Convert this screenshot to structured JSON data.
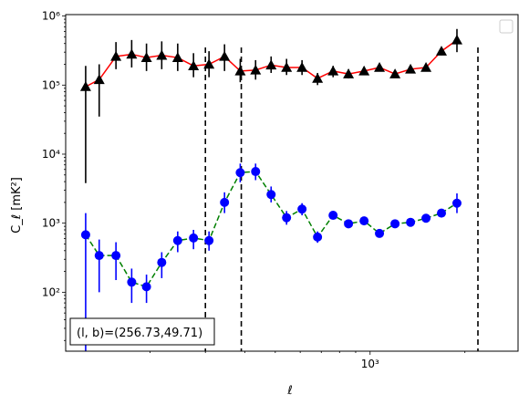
{
  "chart_data": {
    "type": "line",
    "title": "",
    "xlabel": "ℓ",
    "ylabel": "C_ℓ  [mK²]",
    "xscale": "log",
    "yscale": "log",
    "xlim": [
      108,
      2950
    ],
    "ylim": [
      14,
      1050000
    ],
    "grid": false,
    "legend": "top-right (empty)",
    "x_ticks": [
      {
        "value": 1000,
        "label": "10³"
      }
    ],
    "y_ticks": [
      {
        "value": 100,
        "label": "10²"
      },
      {
        "value": 1000,
        "label": "10³"
      },
      {
        "value": 10000,
        "label": "10⁴"
      },
      {
        "value": 100000,
        "label": "10⁵"
      },
      {
        "value": 1000000,
        "label": "10⁶"
      }
    ],
    "annotation": "(l, b)=(256.73,49.71)",
    "vlines": [
      300,
      390,
      2200
    ],
    "series": [
      {
        "color": "#ff0000",
        "marker": "triangle",
        "marker_color": "#000000",
        "line_style": "solid",
        "points": [
          {
            "x": 125,
            "y": 95000,
            "lo": 3800,
            "hi": 190000
          },
          {
            "x": 138,
            "y": 120000,
            "lo": 35000,
            "hi": 200000
          },
          {
            "x": 156,
            "y": 260000,
            "lo": 170000,
            "hi": 420000
          },
          {
            "x": 175,
            "y": 280000,
            "lo": 180000,
            "hi": 450000
          },
          {
            "x": 195,
            "y": 250000,
            "lo": 160000,
            "hi": 400000
          },
          {
            "x": 218,
            "y": 270000,
            "lo": 170000,
            "hi": 430000
          },
          {
            "x": 245,
            "y": 250000,
            "lo": 160000,
            "hi": 400000
          },
          {
            "x": 275,
            "y": 190000,
            "lo": 130000,
            "hi": 290000
          },
          {
            "x": 308,
            "y": 200000,
            "lo": 130000,
            "hi": 310000
          },
          {
            "x": 345,
            "y": 260000,
            "lo": 160000,
            "hi": 390000
          },
          {
            "x": 387,
            "y": 160000,
            "lo": 110000,
            "hi": 240000
          },
          {
            "x": 433,
            "y": 165000,
            "lo": 120000,
            "hi": 230000
          },
          {
            "x": 485,
            "y": 195000,
            "lo": 150000,
            "hi": 260000
          },
          {
            "x": 543,
            "y": 180000,
            "lo": 140000,
            "hi": 240000
          },
          {
            "x": 608,
            "y": 180000,
            "lo": 140000,
            "hi": 230000
          },
          {
            "x": 681,
            "y": 125000,
            "lo": 100000,
            "hi": 150000
          },
          {
            "x": 763,
            "y": 160000,
            "lo": 130000,
            "hi": 190000
          },
          {
            "x": 854,
            "y": 145000,
            "lo": 125000,
            "hi": 170000
          },
          {
            "x": 957,
            "y": 160000,
            "lo": 140000,
            "hi": 185000
          },
          {
            "x": 1071,
            "y": 180000,
            "lo": 160000,
            "hi": 205000
          },
          {
            "x": 1200,
            "y": 145000,
            "lo": 130000,
            "hi": 165000
          },
          {
            "x": 1344,
            "y": 170000,
            "lo": 150000,
            "hi": 190000
          },
          {
            "x": 1505,
            "y": 180000,
            "lo": 160000,
            "hi": 200000
          },
          {
            "x": 1685,
            "y": 310000,
            "lo": 270000,
            "hi": 350000
          },
          {
            "x": 1887,
            "y": 450000,
            "lo": 300000,
            "hi": 650000
          }
        ]
      },
      {
        "color": "#008000",
        "marker": "circle",
        "marker_color": "#0000ff",
        "line_style": "dashed",
        "points": [
          {
            "x": 125,
            "y": 680,
            "lo": 14,
            "hi": 1400
          },
          {
            "x": 138,
            "y": 340,
            "lo": 100,
            "hi": 580
          },
          {
            "x": 156,
            "y": 340,
            "lo": 150,
            "hi": 530
          },
          {
            "x": 175,
            "y": 140,
            "lo": 70,
            "hi": 220
          },
          {
            "x": 195,
            "y": 120,
            "lo": 70,
            "hi": 180
          },
          {
            "x": 218,
            "y": 270,
            "lo": 160,
            "hi": 380
          },
          {
            "x": 245,
            "y": 560,
            "lo": 380,
            "hi": 760
          },
          {
            "x": 275,
            "y": 610,
            "lo": 420,
            "hi": 800
          },
          {
            "x": 308,
            "y": 560,
            "lo": 400,
            "hi": 760
          },
          {
            "x": 345,
            "y": 2000,
            "lo": 1400,
            "hi": 2800
          },
          {
            "x": 387,
            "y": 5400,
            "lo": 3900,
            "hi": 7300
          },
          {
            "x": 433,
            "y": 5600,
            "lo": 4200,
            "hi": 7300
          },
          {
            "x": 485,
            "y": 2600,
            "lo": 2000,
            "hi": 3400
          },
          {
            "x": 543,
            "y": 1200,
            "lo": 950,
            "hi": 1500
          },
          {
            "x": 608,
            "y": 1600,
            "lo": 1300,
            "hi": 1950
          },
          {
            "x": 681,
            "y": 630,
            "lo": 520,
            "hi": 760
          },
          {
            "x": 763,
            "y": 1300,
            "lo": 1150,
            "hi": 1450
          },
          {
            "x": 854,
            "y": 980,
            "lo": 880,
            "hi": 1080
          },
          {
            "x": 957,
            "y": 1080,
            "lo": 980,
            "hi": 1180
          },
          {
            "x": 1071,
            "y": 710,
            "lo": 640,
            "hi": 790
          },
          {
            "x": 1200,
            "y": 980,
            "lo": 900,
            "hi": 1060
          },
          {
            "x": 1344,
            "y": 1030,
            "lo": 950,
            "hi": 1110
          },
          {
            "x": 1505,
            "y": 1180,
            "lo": 1080,
            "hi": 1280
          },
          {
            "x": 1685,
            "y": 1400,
            "lo": 1270,
            "hi": 1540
          },
          {
            "x": 1887,
            "y": 1950,
            "lo": 1400,
            "hi": 2700
          }
        ]
      }
    ]
  }
}
